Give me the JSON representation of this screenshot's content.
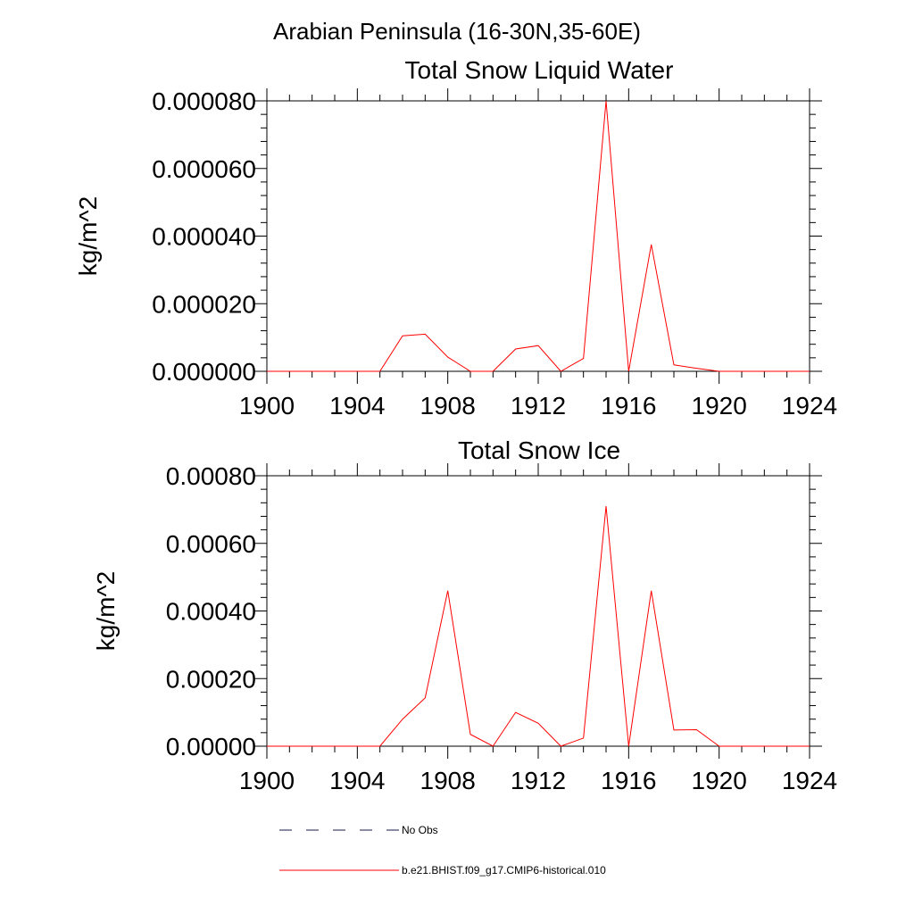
{
  "figure": {
    "region_title": "Arabian Peninsula (16-30N,35-60E)"
  },
  "legend": {
    "placement": "bottom",
    "entries": [
      {
        "label": "No Obs",
        "color": "#000000",
        "style": "dashed"
      },
      {
        "label": "b.e21.BHIST.f09_g17.CMIP6-historical.010",
        "color": "#ff0000",
        "style": "solid"
      }
    ]
  },
  "chart_data": [
    {
      "type": "line",
      "title": "Total Snow Liquid Water",
      "xlabel": "",
      "ylabel": "kg/m^2",
      "xlim": [
        1900,
        1924
      ],
      "ylim": [
        0,
        8e-05
      ],
      "xticks": [
        1900,
        1904,
        1908,
        1912,
        1916,
        1920,
        1924
      ],
      "xtick_labels": [
        "1900",
        "1904",
        "1908",
        "1912",
        "1916",
        "1920",
        "1924"
      ],
      "yticks": [
        0,
        2e-05,
        4e-05,
        6e-05,
        8e-05
      ],
      "ytick_labels": [
        "0.000000",
        "0.000020",
        "0.000040",
        "0.000060",
        "0.000080"
      ],
      "grid": false,
      "x": [
        1900,
        1901,
        1902,
        1903,
        1904,
        1905,
        1906,
        1907,
        1908,
        1909,
        1910,
        1911,
        1912,
        1913,
        1914,
        1915,
        1916,
        1917,
        1918,
        1919,
        1920,
        1921,
        1922,
        1923,
        1924
      ],
      "series": [
        {
          "name": "b.e21.BHIST.f09_g17.CMIP6-historical.010",
          "color": "#ff0000",
          "values": [
            0,
            0,
            0,
            0,
            0,
            0,
            1.05e-05,
            1.1e-05,
            4.2e-06,
            0,
            0,
            6.6e-06,
            7.6e-06,
            0,
            3.8e-06,
            8e-05,
            0,
            3.75e-05,
            1.9e-06,
            9e-07,
            0,
            0,
            0,
            0,
            0
          ]
        }
      ]
    },
    {
      "type": "line",
      "title": "Total Snow Ice",
      "xlabel": "",
      "ylabel": "kg/m^2",
      "xlim": [
        1900,
        1924
      ],
      "ylim": [
        0,
        0.0008
      ],
      "xticks": [
        1900,
        1904,
        1908,
        1912,
        1916,
        1920,
        1924
      ],
      "xtick_labels": [
        "1900",
        "1904",
        "1908",
        "1912",
        "1916",
        "1920",
        "1924"
      ],
      "yticks": [
        0,
        0.0002,
        0.0004,
        0.0006,
        0.0008
      ],
      "ytick_labels": [
        "0.00000",
        "0.00020",
        "0.00040",
        "0.00060",
        "0.00080"
      ],
      "grid": false,
      "x": [
        1900,
        1901,
        1902,
        1903,
        1904,
        1905,
        1906,
        1907,
        1908,
        1909,
        1910,
        1911,
        1912,
        1913,
        1914,
        1915,
        1916,
        1917,
        1918,
        1919,
        1920,
        1921,
        1922,
        1923,
        1924
      ],
      "series": [
        {
          "name": "b.e21.BHIST.f09_g17.CMIP6-historical.010",
          "color": "#ff0000",
          "values": [
            0,
            0,
            0,
            0,
            0,
            0,
            8e-05,
            0.000143,
            0.00046,
            3.5e-05,
            0,
            0.0001,
            6.8e-05,
            0,
            2.4e-05,
            0.00071,
            0,
            0.00046,
            4.8e-05,
            4.9e-05,
            0,
            0,
            0,
            0,
            0
          ]
        }
      ]
    }
  ]
}
